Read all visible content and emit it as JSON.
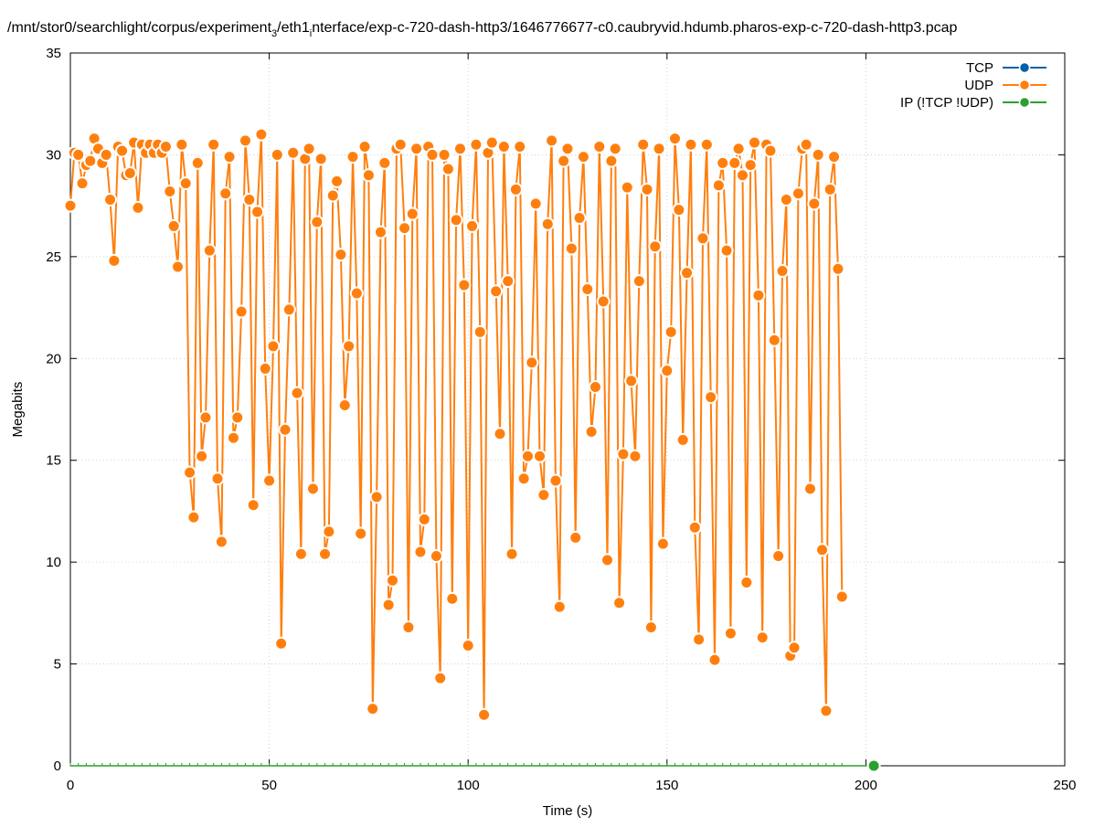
{
  "chart_data": {
    "type": "line",
    "title": "/mnt/stor0/searchlight/corpus/experiment",
    "title_sub_1": "3",
    "title_mid": "/eth1",
    "title_sub_2": "i",
    "title_tail": "nterface/exp-c-720-dash-http3/1646776677-c0.caubryvid.hdumb.pharos-exp-c-720-dash-http3.pcap",
    "xlabel": "Time (s)",
    "ylabel": "Megabits",
    "xlim": [
      0,
      250
    ],
    "ylim": [
      0,
      35
    ],
    "x_ticks": [
      0,
      50,
      100,
      150,
      200,
      250
    ],
    "y_ticks": [
      0,
      5,
      10,
      15,
      20,
      25,
      30,
      35
    ],
    "grid": true,
    "legend_position": "top-right",
    "series": [
      {
        "name": "TCP",
        "color": "#0060ad",
        "points": []
      },
      {
        "name": "UDP",
        "color": "#ff7f0e",
        "points": [
          [
            0,
            27.5
          ],
          [
            1,
            30.1
          ],
          [
            2,
            30.0
          ],
          [
            3,
            28.6
          ],
          [
            4,
            29.5
          ],
          [
            5,
            29.7
          ],
          [
            6,
            30.8
          ],
          [
            7,
            30.3
          ],
          [
            8,
            29.6
          ],
          [
            9,
            30.0
          ],
          [
            10,
            27.8
          ],
          [
            11,
            24.8
          ],
          [
            12,
            30.4
          ],
          [
            13,
            30.2
          ],
          [
            14,
            29.0
          ],
          [
            15,
            29.1
          ],
          [
            16,
            30.6
          ],
          [
            17,
            27.4
          ],
          [
            18,
            30.5
          ],
          [
            19,
            30.1
          ],
          [
            20,
            30.5
          ],
          [
            21,
            30.1
          ],
          [
            22,
            30.5
          ],
          [
            23,
            30.1
          ],
          [
            24,
            30.4
          ],
          [
            25,
            28.2
          ],
          [
            26,
            26.5
          ],
          [
            27,
            24.5
          ],
          [
            28,
            30.5
          ],
          [
            29,
            28.6
          ],
          [
            30,
            14.4
          ],
          [
            31,
            12.2
          ],
          [
            32,
            29.6
          ],
          [
            33,
            15.2
          ],
          [
            34,
            17.1
          ],
          [
            35,
            25.3
          ],
          [
            36,
            30.5
          ],
          [
            37,
            14.1
          ],
          [
            38,
            11.0
          ],
          [
            39,
            28.1
          ],
          [
            40,
            29.9
          ],
          [
            41,
            16.1
          ],
          [
            42,
            17.1
          ],
          [
            43,
            22.3
          ],
          [
            44,
            30.7
          ],
          [
            45,
            27.8
          ],
          [
            46,
            12.8
          ],
          [
            47,
            27.2
          ],
          [
            48,
            31.0
          ],
          [
            49,
            19.5
          ],
          [
            50,
            14.0
          ],
          [
            51,
            20.6
          ],
          [
            52,
            30.0
          ],
          [
            53,
            6.0
          ],
          [
            54,
            16.5
          ],
          [
            55,
            22.4
          ],
          [
            56,
            30.1
          ],
          [
            57,
            18.3
          ],
          [
            58,
            10.4
          ],
          [
            59,
            29.8
          ],
          [
            60,
            30.3
          ],
          [
            61,
            13.6
          ],
          [
            62,
            26.7
          ],
          [
            63,
            29.8
          ],
          [
            64,
            10.4
          ],
          [
            65,
            11.5
          ],
          [
            66,
            28.0
          ],
          [
            67,
            28.7
          ],
          [
            68,
            25.1
          ],
          [
            69,
            17.7
          ],
          [
            70,
            20.6
          ],
          [
            71,
            29.9
          ],
          [
            72,
            23.2
          ],
          [
            73,
            11.4
          ],
          [
            74,
            30.4
          ],
          [
            75,
            29.0
          ],
          [
            76,
            2.8
          ],
          [
            77,
            13.2
          ],
          [
            78,
            26.2
          ],
          [
            79,
            29.6
          ],
          [
            80,
            7.9
          ],
          [
            81,
            9.1
          ],
          [
            82,
            30.3
          ],
          [
            83,
            30.5
          ],
          [
            84,
            26.4
          ],
          [
            85,
            6.8
          ],
          [
            86,
            27.1
          ],
          [
            87,
            30.3
          ],
          [
            88,
            10.5
          ],
          [
            89,
            12.1
          ],
          [
            90,
            30.4
          ],
          [
            91,
            30.0
          ],
          [
            92,
            10.3
          ],
          [
            93,
            4.3
          ],
          [
            94,
            30.0
          ],
          [
            95,
            29.3
          ],
          [
            96,
            8.2
          ],
          [
            97,
            26.8
          ],
          [
            98,
            30.3
          ],
          [
            99,
            23.6
          ],
          [
            100,
            5.9
          ],
          [
            101,
            26.5
          ],
          [
            102,
            30.5
          ],
          [
            103,
            21.3
          ],
          [
            104,
            2.5
          ],
          [
            105,
            30.1
          ],
          [
            106,
            30.6
          ],
          [
            107,
            23.3
          ],
          [
            108,
            16.3
          ],
          [
            109,
            30.4
          ],
          [
            110,
            23.8
          ],
          [
            111,
            10.4
          ],
          [
            112,
            28.3
          ],
          [
            113,
            30.4
          ],
          [
            114,
            14.1
          ],
          [
            115,
            15.2
          ],
          [
            116,
            19.8
          ],
          [
            117,
            27.6
          ],
          [
            118,
            15.2
          ],
          [
            119,
            13.3
          ],
          [
            120,
            26.6
          ],
          [
            121,
            30.7
          ],
          [
            122,
            14.0
          ],
          [
            123,
            7.8
          ],
          [
            124,
            29.7
          ],
          [
            125,
            30.3
          ],
          [
            126,
            25.4
          ],
          [
            127,
            11.2
          ],
          [
            128,
            26.9
          ],
          [
            129,
            29.9
          ],
          [
            130,
            23.4
          ],
          [
            131,
            16.4
          ],
          [
            132,
            18.6
          ],
          [
            133,
            30.4
          ],
          [
            134,
            22.8
          ],
          [
            135,
            10.1
          ],
          [
            136,
            29.7
          ],
          [
            137,
            30.3
          ],
          [
            138,
            8.0
          ],
          [
            139,
            15.3
          ],
          [
            140,
            28.4
          ],
          [
            141,
            18.9
          ],
          [
            142,
            15.2
          ],
          [
            143,
            23.8
          ],
          [
            144,
            30.5
          ],
          [
            145,
            28.3
          ],
          [
            146,
            6.8
          ],
          [
            147,
            25.5
          ],
          [
            148,
            30.3
          ],
          [
            149,
            10.9
          ],
          [
            150,
            19.4
          ],
          [
            151,
            21.3
          ],
          [
            152,
            30.8
          ],
          [
            153,
            27.3
          ],
          [
            154,
            16.0
          ],
          [
            155,
            24.2
          ],
          [
            156,
            30.5
          ],
          [
            157,
            11.7
          ],
          [
            158,
            6.2
          ],
          [
            159,
            25.9
          ],
          [
            160,
            30.5
          ],
          [
            161,
            18.1
          ],
          [
            162,
            5.2
          ],
          [
            163,
            28.5
          ],
          [
            164,
            29.6
          ],
          [
            165,
            25.3
          ],
          [
            166,
            6.5
          ],
          [
            167,
            29.6
          ],
          [
            168,
            30.3
          ],
          [
            169,
            29.0
          ],
          [
            170,
            9.0
          ],
          [
            171,
            29.5
          ],
          [
            172,
            30.6
          ],
          [
            173,
            23.1
          ],
          [
            174,
            6.3
          ],
          [
            175,
            30.5
          ],
          [
            176,
            30.2
          ],
          [
            177,
            20.9
          ],
          [
            178,
            10.3
          ],
          [
            179,
            24.3
          ],
          [
            180,
            27.8
          ],
          [
            181,
            5.4
          ],
          [
            182,
            5.8
          ],
          [
            183,
            28.1
          ],
          [
            184,
            30.3
          ],
          [
            185,
            30.5
          ],
          [
            186,
            13.6
          ],
          [
            187,
            27.6
          ],
          [
            188,
            30.0
          ],
          [
            189,
            10.6
          ],
          [
            190,
            2.7
          ],
          [
            191,
            28.3
          ],
          [
            192,
            29.9
          ],
          [
            193,
            24.4
          ],
          [
            194,
            8.3
          ]
        ]
      },
      {
        "name": "IP (!TCP  !UDP)",
        "color": "#2ca02c",
        "points": [
          [
            202,
            0
          ]
        ]
      }
    ]
  }
}
